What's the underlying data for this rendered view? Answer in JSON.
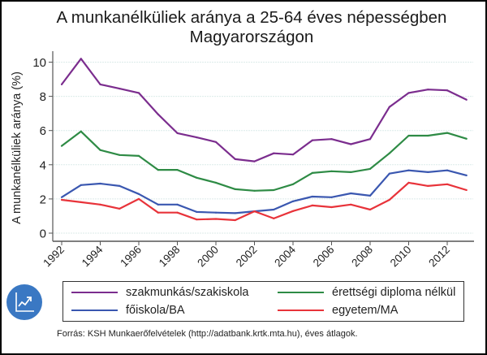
{
  "chart_data": {
    "type": "line",
    "title_line1": "A munkanélküliek aránya a 25-64 éves népességben",
    "title_line2": "Magyarországon",
    "xlabel": "",
    "ylabel": "A munkanélküliek aránya (%)",
    "ylim": [
      0,
      10.5
    ],
    "xlim": [
      1992,
      2013
    ],
    "grid": true,
    "legend_position": "bottom",
    "x": [
      1992,
      1993,
      1994,
      1995,
      1996,
      1997,
      1998,
      1999,
      2000,
      2001,
      2002,
      2003,
      2004,
      2005,
      2006,
      2007,
      2008,
      2009,
      2010,
      2011,
      2012,
      2013
    ],
    "x_ticks": [
      "1992",
      "1994",
      "1996",
      "1998",
      "2000",
      "2002",
      "2004",
      "2006",
      "2008",
      "2010",
      "2012"
    ],
    "y_ticks": [
      "0",
      "2",
      "4",
      "6",
      "8",
      "10"
    ],
    "series": [
      {
        "name": "szakmunkás/szakiskola",
        "color": "#7b2d8e",
        "values": [
          8.7,
          10.2,
          8.7,
          8.45,
          8.2,
          6.95,
          5.85,
          5.6,
          5.33,
          4.33,
          4.2,
          4.67,
          4.6,
          5.43,
          5.5,
          5.2,
          5.5,
          7.38,
          8.2,
          8.4,
          8.35,
          7.8
        ]
      },
      {
        "name": "érettségi diploma nélkül",
        "color": "#2e8b45",
        "values": [
          5.1,
          5.95,
          4.86,
          4.57,
          4.52,
          3.7,
          3.7,
          3.24,
          2.95,
          2.57,
          2.48,
          2.52,
          2.86,
          3.52,
          3.62,
          3.57,
          3.76,
          4.67,
          5.7,
          5.7,
          5.86,
          5.52
        ]
      },
      {
        "name": "főiskola/BA",
        "color": "#3a57b0",
        "values": [
          2.1,
          2.81,
          2.9,
          2.76,
          2.29,
          1.67,
          1.67,
          1.24,
          1.2,
          1.17,
          1.28,
          1.38,
          1.86,
          2.14,
          2.1,
          2.33,
          2.19,
          3.48,
          3.67,
          3.57,
          3.67,
          3.38
        ]
      },
      {
        "name": "egyetem/MA",
        "color": "#e8333a",
        "values": [
          1.95,
          1.81,
          1.67,
          1.43,
          2.0,
          1.2,
          1.2,
          0.8,
          0.83,
          0.76,
          1.28,
          0.86,
          1.29,
          1.62,
          1.52,
          1.67,
          1.38,
          1.95,
          2.95,
          2.76,
          2.86,
          2.52
        ]
      }
    ],
    "source": "Forrás: KSH Munkaerőfelvételek (http://adatbank.krtk.mta.hu), éves átlagok."
  },
  "badge": {
    "icon": "chart-trend-icon",
    "color": "#3a78c3"
  }
}
